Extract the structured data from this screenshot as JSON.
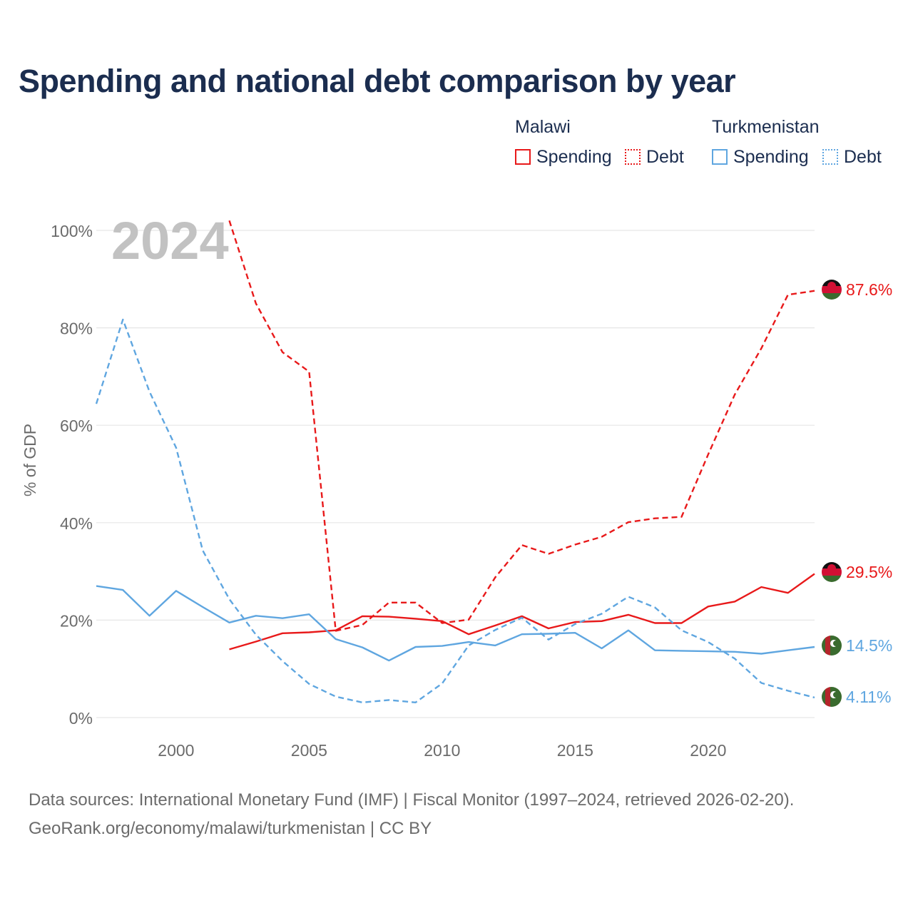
{
  "title": "Spending and national debt comparison by year",
  "legend": {
    "groups": [
      {
        "country": "Malawi",
        "color": "#e8191a",
        "items": [
          "Spending",
          "Debt"
        ]
      },
      {
        "country": "Turkmenistan",
        "color": "#5fa6e0",
        "items": [
          "Spending",
          "Debt"
        ]
      }
    ]
  },
  "footer": {
    "line1": "Data sources: International Monetary Fund (IMF) | Fiscal Monitor (1997–2024, retrieved 2026-02-20).",
    "line2": "GeoRank.org/economy/malawi/turkmenistan | CC BY"
  },
  "chart_data": {
    "type": "line",
    "year_label": "2024",
    "ylabel": "% of GDP",
    "xlim": [
      1997,
      2024
    ],
    "ylim": [
      0,
      100
    ],
    "x_ticks": [
      2000,
      2005,
      2010,
      2015,
      2020
    ],
    "y_ticks": [
      0,
      20,
      40,
      60,
      80,
      100
    ],
    "y_tick_labels": [
      "0%",
      "20%",
      "40%",
      "60%",
      "80%",
      "100%"
    ],
    "series": [
      {
        "name": "Malawi Spending",
        "country": "Malawi",
        "metric": "Spending",
        "color": "#e8191a",
        "dashed": false,
        "end_label": "29.5%",
        "x": [
          2002,
          2003,
          2004,
          2005,
          2006,
          2007,
          2008,
          2009,
          2010,
          2011,
          2012,
          2013,
          2014,
          2015,
          2016,
          2017,
          2018,
          2019,
          2020,
          2021,
          2022,
          2023,
          2024
        ],
        "values": [
          14.0,
          15.6,
          17.3,
          17.5,
          17.9,
          20.8,
          20.7,
          20.3,
          19.8,
          17.1,
          18.9,
          20.8,
          18.3,
          19.6,
          19.8,
          21.1,
          19.4,
          19.4,
          22.8,
          23.8,
          26.8,
          25.6,
          29.5
        ]
      },
      {
        "name": "Malawi Debt",
        "country": "Malawi",
        "metric": "Debt",
        "color": "#e8191a",
        "dashed": true,
        "end_label": "87.6%",
        "x": [
          2002,
          2003,
          2004,
          2005,
          2006,
          2007,
          2008,
          2009,
          2010,
          2011,
          2012,
          2013,
          2014,
          2015,
          2016,
          2017,
          2018,
          2019,
          2020,
          2021,
          2022,
          2023,
          2024
        ],
        "values": [
          102.0,
          85.0,
          75.0,
          71.0,
          17.8,
          19.0,
          23.6,
          23.6,
          19.4,
          20.1,
          28.8,
          35.4,
          33.6,
          35.5,
          37.1,
          40.1,
          40.9,
          41.2,
          54.0,
          66.3,
          75.8,
          86.8,
          87.6
        ]
      },
      {
        "name": "Turkmenistan Spending",
        "country": "Turkmenistan",
        "metric": "Spending",
        "color": "#5fa6e0",
        "dashed": false,
        "end_label": "14.5%",
        "x": [
          1997,
          1998,
          1999,
          2000,
          2001,
          2002,
          2003,
          2004,
          2005,
          2006,
          2007,
          2008,
          2009,
          2010,
          2011,
          2012,
          2013,
          2014,
          2015,
          2016,
          2017,
          2018,
          2019,
          2020,
          2021,
          2022,
          2023,
          2024
        ],
        "values": [
          27.0,
          26.2,
          20.9,
          26.0,
          22.7,
          19.5,
          20.9,
          20.4,
          21.2,
          16.1,
          14.4,
          11.7,
          14.5,
          14.7,
          15.5,
          14.8,
          17.1,
          17.2,
          17.4,
          14.2,
          17.9,
          13.8,
          13.7,
          13.6,
          13.5,
          13.1,
          13.8,
          14.5
        ]
      },
      {
        "name": "Turkmenistan Debt",
        "country": "Turkmenistan",
        "metric": "Debt",
        "color": "#5fa6e0",
        "dashed": true,
        "end_label": "4.11%",
        "x": [
          1997,
          1998,
          1999,
          2000,
          2001,
          2002,
          2003,
          2004,
          2005,
          2006,
          2007,
          2008,
          2009,
          2010,
          2011,
          2012,
          2013,
          2014,
          2015,
          2016,
          2017,
          2018,
          2019,
          2020,
          2021,
          2022,
          2023,
          2024
        ],
        "values": [
          64.4,
          81.7,
          66.9,
          55.4,
          34.3,
          24.3,
          17.0,
          11.6,
          6.9,
          4.3,
          3.1,
          3.6,
          3.1,
          7.0,
          14.8,
          18.0,
          20.5,
          16.0,
          19.2,
          21.3,
          24.8,
          22.6,
          17.9,
          15.5,
          12.1,
          7.1,
          5.5,
          4.11
        ]
      }
    ]
  }
}
